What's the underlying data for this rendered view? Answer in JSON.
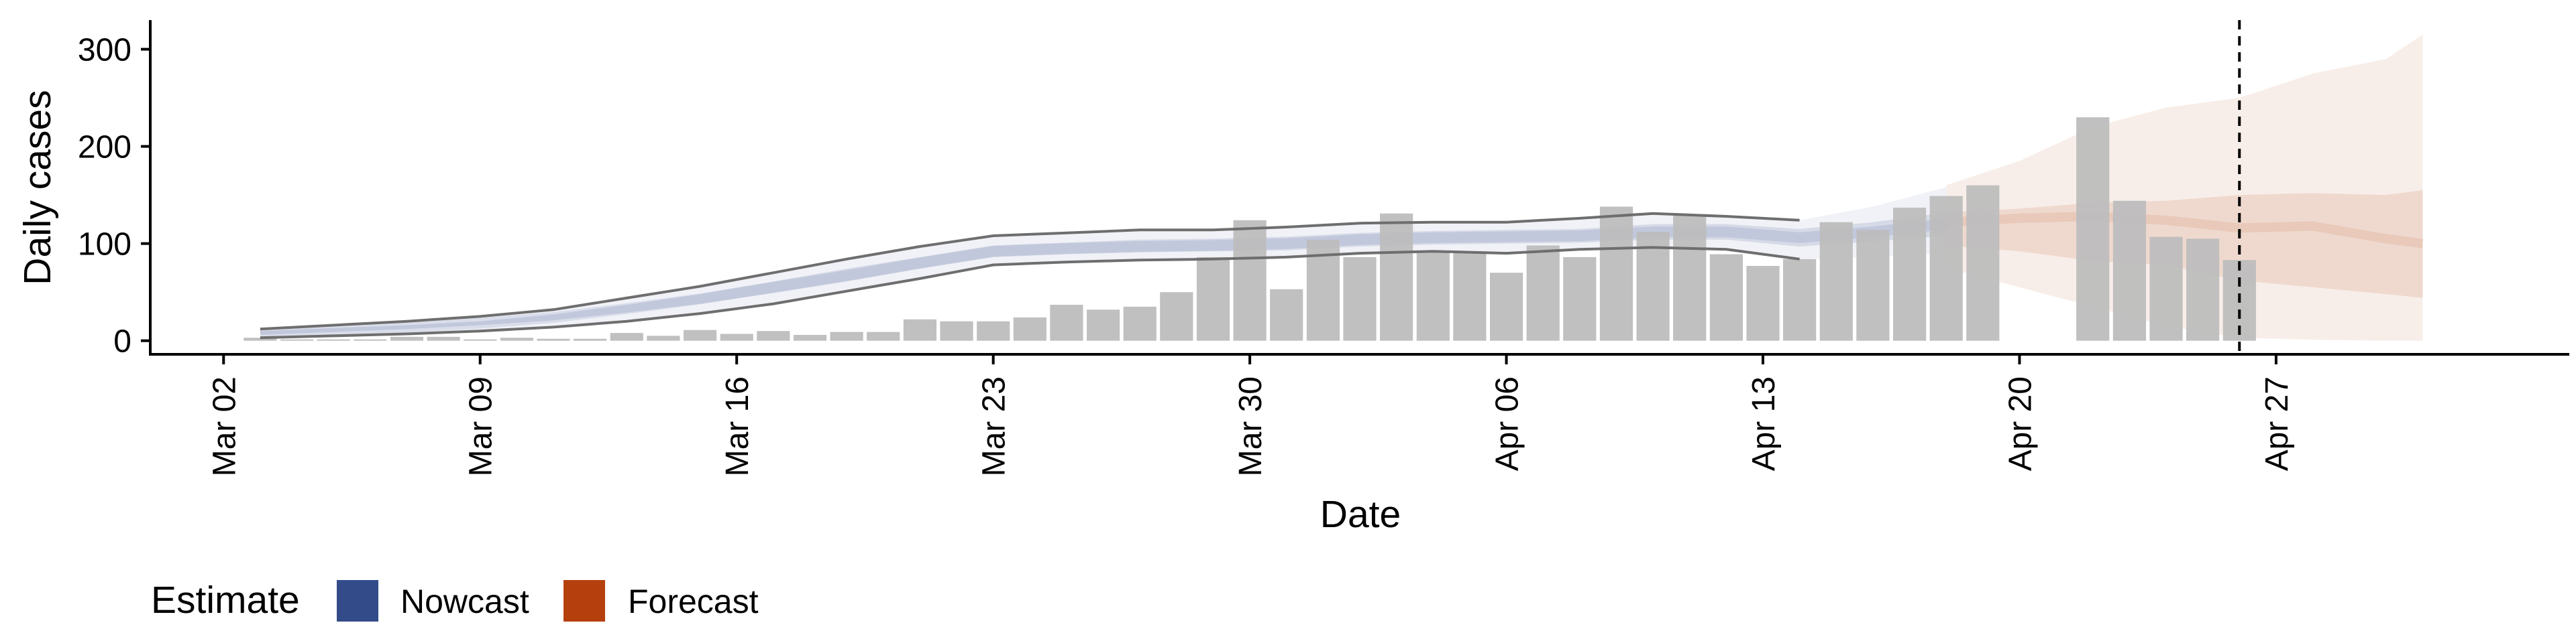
{
  "chart_data": {
    "type": "bar",
    "xlabel": "Date",
    "ylabel": "Daily cases",
    "ylim": [
      -14,
      330
    ],
    "xlim": [
      "2020-02-29",
      "2020-05-05"
    ],
    "y_ticks": [
      0,
      100,
      200,
      300
    ],
    "x_ticks": [
      {
        "date": "2020-03-02",
        "label": "Mar 02"
      },
      {
        "date": "2020-03-09",
        "label": "Mar 09"
      },
      {
        "date": "2020-03-16",
        "label": "Mar 16"
      },
      {
        "date": "2020-03-23",
        "label": "Mar 23"
      },
      {
        "date": "2020-03-30",
        "label": "Mar 30"
      },
      {
        "date": "2020-04-06",
        "label": "Apr 06"
      },
      {
        "date": "2020-04-13",
        "label": "Apr 13"
      },
      {
        "date": "2020-04-20",
        "label": "Apr 20"
      },
      {
        "date": "2020-04-27",
        "label": "Apr 27"
      }
    ],
    "grid": false,
    "legend": {
      "title": "Estimate",
      "position": "bottom-left",
      "entries": [
        {
          "label": "Nowcast",
          "color": "#344b8a"
        },
        {
          "label": "Forecast",
          "color": "#b5400e"
        }
      ]
    },
    "colors": {
      "bar": "#bdbdbd",
      "nowcast": "#344b8a",
      "forecast": "#b5400e",
      "bounds_line": "#6e6e6e",
      "reference_line": "#000000"
    },
    "reported_cases": {
      "dates": [
        "2020-03-03",
        "2020-03-04",
        "2020-03-05",
        "2020-03-06",
        "2020-03-07",
        "2020-03-08",
        "2020-03-09",
        "2020-03-10",
        "2020-03-11",
        "2020-03-12",
        "2020-03-13",
        "2020-03-14",
        "2020-03-15",
        "2020-03-16",
        "2020-03-17",
        "2020-03-18",
        "2020-03-19",
        "2020-03-20",
        "2020-03-21",
        "2020-03-22",
        "2020-03-23",
        "2020-03-24",
        "2020-03-25",
        "2020-03-26",
        "2020-03-27",
        "2020-03-28",
        "2020-03-29",
        "2020-03-30",
        "2020-03-31",
        "2020-04-01",
        "2020-04-02",
        "2020-04-03",
        "2020-04-04",
        "2020-04-05",
        "2020-04-06",
        "2020-04-07",
        "2020-04-08",
        "2020-04-09",
        "2020-04-10",
        "2020-04-11",
        "2020-04-12",
        "2020-04-13",
        "2020-04-14",
        "2020-04-15",
        "2020-04-16",
        "2020-04-17",
        "2020-04-18",
        "2020-04-19",
        "2020-04-20",
        "2020-04-21",
        "2020-04-22",
        "2020-04-23",
        "2020-04-24",
        "2020-04-25",
        "2020-04-26"
      ],
      "values": [
        3,
        0,
        0,
        0,
        4,
        4,
        0,
        3,
        2,
        2,
        8,
        5,
        11,
        7,
        10,
        6,
        9,
        9,
        22,
        20,
        20,
        24,
        37,
        32,
        35,
        50,
        86,
        124,
        53,
        104,
        86,
        131,
        91,
        92,
        70,
        98,
        86,
        138,
        112,
        129,
        89,
        77,
        84,
        122,
        114,
        137,
        149,
        160,
        null,
        null,
        230,
        144,
        107,
        105,
        83
      ]
    },
    "nowcast": {
      "dates": [
        "2020-03-03",
        "2020-03-05",
        "2020-03-07",
        "2020-03-09",
        "2020-03-11",
        "2020-03-13",
        "2020-03-15",
        "2020-03-17",
        "2020-03-19",
        "2020-03-21",
        "2020-03-23",
        "2020-03-25",
        "2020-03-27",
        "2020-03-29",
        "2020-03-31",
        "2020-04-02",
        "2020-04-04",
        "2020-04-06",
        "2020-04-08",
        "2020-04-10",
        "2020-04-12",
        "2020-04-14",
        "2020-04-16",
        "2020-04-18"
      ],
      "median": [
        8,
        11,
        14,
        18,
        24,
        33,
        43,
        55,
        67,
        80,
        92,
        95,
        97,
        98,
        100,
        104,
        106,
        107,
        108,
        112,
        112,
        106,
        112,
        120
      ],
      "lower_50": [
        6,
        9,
        12,
        16,
        21,
        29,
        38,
        49,
        61,
        74,
        86,
        89,
        91,
        92,
        93,
        97,
        99,
        100,
        101,
        104,
        104,
        97,
        102,
        108
      ],
      "upper_50": [
        10,
        13,
        16,
        20,
        27,
        37,
        48,
        61,
        74,
        86,
        98,
        101,
        104,
        105,
        107,
        111,
        113,
        114,
        115,
        120,
        120,
        115,
        122,
        132
      ],
      "lower_90": [
        3,
        5,
        7,
        10,
        14,
        20,
        28,
        38,
        51,
        64,
        78,
        81,
        83,
        84,
        86,
        90,
        92,
        90,
        94,
        96,
        94,
        84,
        86,
        90
      ],
      "upper_90": [
        12,
        16,
        20,
        25,
        32,
        44,
        56,
        70,
        84,
        97,
        108,
        111,
        114,
        114,
        117,
        121,
        122,
        122,
        126,
        131,
        128,
        124,
        138,
        158
      ]
    },
    "forecast": {
      "dates": [
        "2020-04-18",
        "2020-04-20",
        "2020-04-22",
        "2020-04-24",
        "2020-04-26",
        "2020-04-28",
        "2020-04-30",
        "2020-05-01"
      ],
      "median": [
        122,
        126,
        128,
        124,
        116,
        118,
        105,
        100
      ],
      "lower_50": [
        98,
        92,
        82,
        78,
        62,
        55,
        48,
        44
      ],
      "upper_50": [
        132,
        136,
        142,
        144,
        150,
        152,
        150,
        155
      ],
      "lower_90": [
        75,
        55,
        35,
        15,
        3,
        1,
        0,
        0
      ],
      "upper_90": [
        160,
        185,
        220,
        240,
        250,
        275,
        290,
        315
      ]
    },
    "reference_line": {
      "date": "2020-04-26",
      "style": "dashed"
    }
  }
}
